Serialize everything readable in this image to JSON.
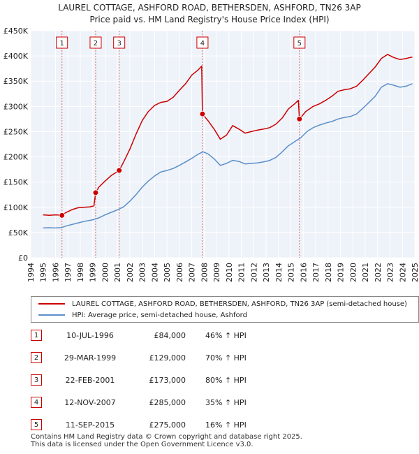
{
  "header": {
    "title": "LAUREL COTTAGE, ASHFORD ROAD, BETHERSDEN, ASHFORD, TN26 3AP",
    "subtitle": "Price paid vs. HM Land Registry's House Price Index (HPI)"
  },
  "chart_data": {
    "type": "line",
    "xlim": [
      1994,
      2025
    ],
    "ylim": [
      0,
      450000
    ],
    "x_ticks": [
      "1994",
      "1995",
      "1996",
      "1997",
      "1998",
      "1999",
      "2000",
      "2001",
      "2002",
      "2003",
      "2004",
      "2005",
      "2006",
      "2007",
      "2008",
      "2009",
      "2010",
      "2011",
      "2012",
      "2013",
      "2014",
      "2015",
      "2016",
      "2017",
      "2018",
      "2019",
      "2020",
      "2021",
      "2022",
      "2023",
      "2024",
      "2025"
    ],
    "y_ticks": [
      {
        "value": 0,
        "label": "£0"
      },
      {
        "value": 50000,
        "label": "£50K"
      },
      {
        "value": 100000,
        "label": "£100K"
      },
      {
        "value": 150000,
        "label": "£150K"
      },
      {
        "value": 200000,
        "label": "£200K"
      },
      {
        "value": 250000,
        "label": "£250K"
      },
      {
        "value": 300000,
        "label": "£300K"
      },
      {
        "value": 350000,
        "label": "£350K"
      },
      {
        "value": 400000,
        "label": "£400K"
      },
      {
        "value": 450000,
        "label": "£450K"
      }
    ],
    "grid": true,
    "legend_position": "below",
    "series": [
      {
        "name": "LAUREL COTTAGE, ASHFORD ROAD, BETHERSDEN, ASHFORD, TN26 3AP (semi-detached house)",
        "color": "#cc0000",
        "points": [
          [
            1995.0,
            85000
          ],
          [
            1995.5,
            84000
          ],
          [
            1996.0,
            85000
          ],
          [
            1996.52,
            84000
          ],
          [
            1996.8,
            89000
          ],
          [
            1997.3,
            95000
          ],
          [
            1997.8,
            99000
          ],
          [
            1998.3,
            100000
          ],
          [
            1998.8,
            101000
          ],
          [
            1999.1,
            103000
          ],
          [
            1999.24,
            129000
          ],
          [
            1999.5,
            140000
          ],
          [
            2000.0,
            152000
          ],
          [
            2000.5,
            163000
          ],
          [
            2001.14,
            173000
          ],
          [
            2001.5,
            190000
          ],
          [
            2002.0,
            215000
          ],
          [
            2002.5,
            245000
          ],
          [
            2003.0,
            272000
          ],
          [
            2003.5,
            290000
          ],
          [
            2004.0,
            302000
          ],
          [
            2004.5,
            308000
          ],
          [
            2005.0,
            310000
          ],
          [
            2005.5,
            318000
          ],
          [
            2006.0,
            332000
          ],
          [
            2006.5,
            345000
          ],
          [
            2007.0,
            362000
          ],
          [
            2007.5,
            372000
          ],
          [
            2007.8,
            380000
          ],
          [
            2007.86,
            285000
          ],
          [
            2008.3,
            272000
          ],
          [
            2008.8,
            255000
          ],
          [
            2009.3,
            235000
          ],
          [
            2009.8,
            243000
          ],
          [
            2010.3,
            262000
          ],
          [
            2010.8,
            255000
          ],
          [
            2011.3,
            247000
          ],
          [
            2011.8,
            250000
          ],
          [
            2012.3,
            253000
          ],
          [
            2012.8,
            255000
          ],
          [
            2013.3,
            258000
          ],
          [
            2013.8,
            265000
          ],
          [
            2014.3,
            277000
          ],
          [
            2014.8,
            295000
          ],
          [
            2015.3,
            305000
          ],
          [
            2015.6,
            312000
          ],
          [
            2015.69,
            275000
          ],
          [
            2016.2,
            290000
          ],
          [
            2016.8,
            300000
          ],
          [
            2017.3,
            305000
          ],
          [
            2017.8,
            312000
          ],
          [
            2018.3,
            320000
          ],
          [
            2018.8,
            330000
          ],
          [
            2019.3,
            333000
          ],
          [
            2019.8,
            335000
          ],
          [
            2020.3,
            340000
          ],
          [
            2020.8,
            352000
          ],
          [
            2021.3,
            365000
          ],
          [
            2021.8,
            378000
          ],
          [
            2022.3,
            395000
          ],
          [
            2022.8,
            403000
          ],
          [
            2023.3,
            397000
          ],
          [
            2023.8,
            393000
          ],
          [
            2024.3,
            395000
          ],
          [
            2024.8,
            398000
          ]
        ]
      },
      {
        "name": "HPI: Average price, semi-detached house, Ashford",
        "color": "#5b8fc9",
        "points": [
          [
            1995.0,
            59000
          ],
          [
            1995.5,
            59500
          ],
          [
            1996.0,
            59000
          ],
          [
            1996.5,
            60000
          ],
          [
            1997.0,
            64000
          ],
          [
            1997.5,
            67000
          ],
          [
            1998.0,
            70000
          ],
          [
            1998.5,
            73000
          ],
          [
            1999.0,
            75000
          ],
          [
            1999.5,
            79000
          ],
          [
            2000.0,
            85000
          ],
          [
            2000.5,
            90000
          ],
          [
            2001.0,
            95000
          ],
          [
            2001.5,
            101000
          ],
          [
            2002.0,
            112000
          ],
          [
            2002.5,
            125000
          ],
          [
            2003.0,
            140000
          ],
          [
            2003.5,
            152000
          ],
          [
            2004.0,
            162000
          ],
          [
            2004.5,
            170000
          ],
          [
            2005.0,
            173000
          ],
          [
            2005.5,
            177000
          ],
          [
            2006.0,
            183000
          ],
          [
            2006.5,
            190000
          ],
          [
            2007.0,
            197000
          ],
          [
            2007.5,
            205000
          ],
          [
            2007.9,
            210000
          ],
          [
            2008.3,
            206000
          ],
          [
            2008.8,
            196000
          ],
          [
            2009.3,
            183000
          ],
          [
            2009.8,
            187000
          ],
          [
            2010.3,
            193000
          ],
          [
            2010.8,
            191000
          ],
          [
            2011.3,
            186000
          ],
          [
            2011.8,
            187000
          ],
          [
            2012.3,
            188000
          ],
          [
            2012.8,
            190000
          ],
          [
            2013.3,
            193000
          ],
          [
            2013.8,
            199000
          ],
          [
            2014.3,
            210000
          ],
          [
            2014.8,
            222000
          ],
          [
            2015.3,
            230000
          ],
          [
            2015.8,
            238000
          ],
          [
            2016.3,
            250000
          ],
          [
            2016.8,
            258000
          ],
          [
            2017.3,
            263000
          ],
          [
            2017.8,
            267000
          ],
          [
            2018.3,
            270000
          ],
          [
            2018.8,
            275000
          ],
          [
            2019.3,
            278000
          ],
          [
            2019.8,
            280000
          ],
          [
            2020.3,
            285000
          ],
          [
            2020.8,
            296000
          ],
          [
            2021.3,
            308000
          ],
          [
            2021.8,
            320000
          ],
          [
            2022.3,
            338000
          ],
          [
            2022.8,
            345000
          ],
          [
            2023.3,
            342000
          ],
          [
            2023.8,
            338000
          ],
          [
            2024.3,
            340000
          ],
          [
            2024.8,
            345000
          ]
        ]
      }
    ],
    "sales": [
      {
        "num": "1",
        "x": 1996.52,
        "value": 84000
      },
      {
        "num": "2",
        "x": 1999.24,
        "value": 129000
      },
      {
        "num": "3",
        "x": 2001.14,
        "value": 173000
      },
      {
        "num": "4",
        "x": 2007.86,
        "value": 285000
      },
      {
        "num": "5",
        "x": 2015.69,
        "value": 275000
      }
    ]
  },
  "legend": {
    "items": [
      {
        "label": "LAUREL COTTAGE, ASHFORD ROAD, BETHERSDEN, ASHFORD, TN26 3AP (semi-detached house)",
        "color": "#cc0000"
      },
      {
        "label": "HPI: Average price, semi-detached house, Ashford",
        "color": "#5b8fc9"
      }
    ]
  },
  "sales_table": {
    "rows": [
      {
        "num": "1",
        "date": "10-JUL-1996",
        "price": "£84,000",
        "hpi": "46% ↑ HPI"
      },
      {
        "num": "2",
        "date": "29-MAR-1999",
        "price": "£129,000",
        "hpi": "70% ↑ HPI"
      },
      {
        "num": "3",
        "date": "22-FEB-2001",
        "price": "£173,000",
        "hpi": "80% ↑ HPI"
      },
      {
        "num": "4",
        "date": "12-NOV-2007",
        "price": "£285,000",
        "hpi": "35% ↑ HPI"
      },
      {
        "num": "5",
        "date": "11-SEP-2015",
        "price": "£275,000",
        "hpi": "16% ↑ HPI"
      }
    ]
  },
  "footer": {
    "line1": "Contains HM Land Registry data © Crown copyright and database right 2025.",
    "line2": "This data is licensed under the Open Government Licence v3.0."
  }
}
